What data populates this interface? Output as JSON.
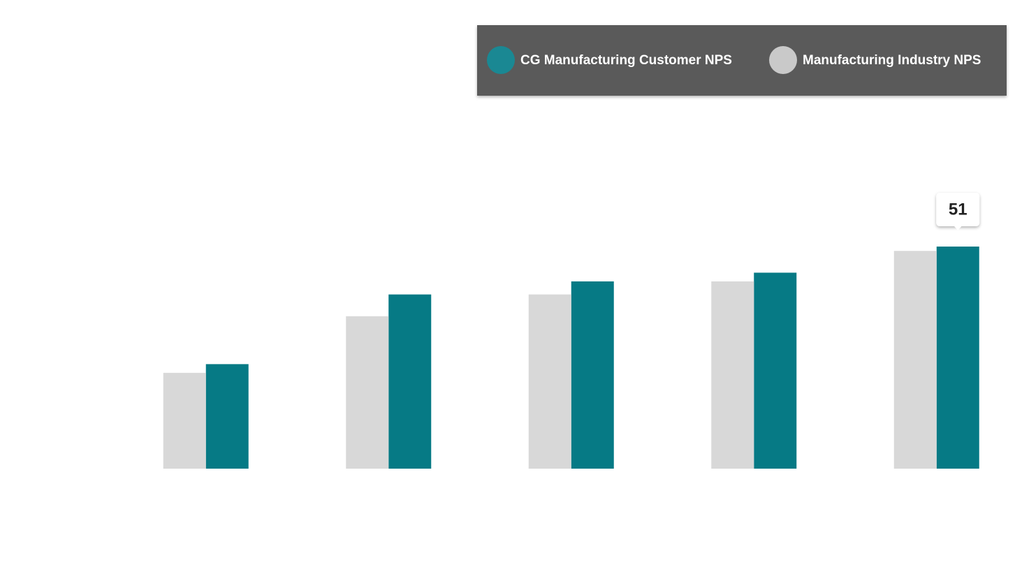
{
  "chart_data": {
    "type": "bar",
    "categories": [
      null,
      null,
      null,
      null,
      null
    ],
    "series": [
      {
        "name": "CG Manufacturing Customer NPS",
        "color": "#067a85",
        "values": [
          24,
          40,
          43,
          45,
          51
        ]
      },
      {
        "name": "Manufacturing Industry NPS",
        "color": "#d8d8d8",
        "values": [
          22,
          35,
          40,
          43,
          50
        ]
      }
    ],
    "ylim": [
      0,
      60
    ],
    "legend": "top-right",
    "tooltip": {
      "series": 0,
      "index": 4
    }
  }
}
